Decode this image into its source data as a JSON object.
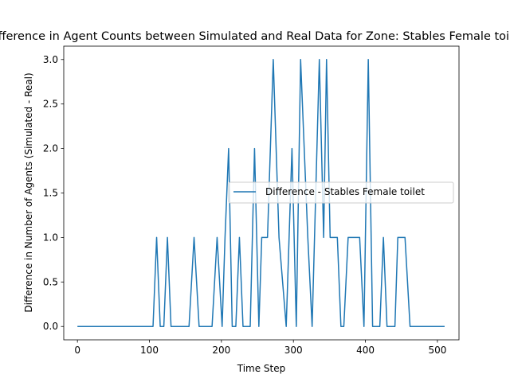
{
  "chart_data": {
    "type": "line",
    "title": "Difference in Agent Counts between Simulated and Real Data for Zone: Stables Female toilet",
    "xlabel": "Time Step",
    "ylabel": "Difference in Number of Agents (Simulated - Real)",
    "xlim": [
      -19,
      530
    ],
    "ylim": [
      -0.15,
      3.15
    ],
    "xticks": [
      0,
      100,
      200,
      300,
      400,
      500
    ],
    "yticks": [
      0.0,
      0.5,
      1.0,
      1.5,
      2.0,
      2.5,
      3.0
    ],
    "xtick_labels": [
      "0",
      "100",
      "200",
      "300",
      "400",
      "500"
    ],
    "ytick_labels": [
      "0.0",
      "0.5",
      "1.0",
      "1.5",
      "2.0",
      "2.5",
      "3.0"
    ],
    "legend_position": "center-right",
    "grid": false,
    "series": [
      {
        "name": "Difference - Stables Female toilet",
        "color": "#1f77b4",
        "x": [
          0,
          105,
          110,
          115,
          120,
          125,
          130,
          155,
          162,
          169,
          187,
          194,
          201,
          205,
          210,
          215,
          220,
          225,
          230,
          240,
          246,
          252,
          256,
          264,
          272,
          280,
          290,
          298,
          304,
          310,
          320,
          326,
          336,
          342,
          346,
          351,
          361,
          366,
          370,
          376,
          392,
          398,
          404,
          410,
          420,
          425,
          430,
          441,
          445,
          455,
          462,
          510
        ],
        "y": [
          0,
          0,
          1,
          0,
          0,
          1,
          0,
          0,
          1,
          0,
          0,
          1,
          0,
          1,
          2,
          0,
          0,
          1,
          0,
          0,
          2,
          0,
          1,
          1,
          3,
          1,
          0,
          2,
          0,
          3,
          1,
          0,
          3,
          1,
          3,
          1,
          1,
          0,
          0,
          1,
          1,
          0,
          3,
          0,
          0,
          1,
          0,
          0,
          1,
          1,
          0,
          0
        ]
      }
    ]
  }
}
